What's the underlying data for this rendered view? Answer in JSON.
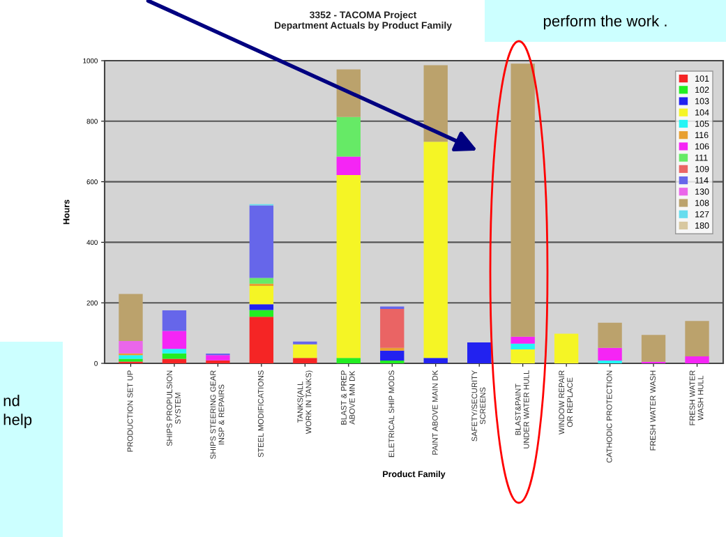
{
  "chart_data": {
    "type": "bar",
    "stacked": true,
    "title": "3352 - TACOMA Project\nDepartment Actuals by Product Family",
    "xlabel": "Product Family",
    "ylabel": "Hours",
    "categories": [
      "PRODUCTION SET UP",
      "SHIPS PROPULSION\nSYSTEM",
      "SHIPS STEERING GEAR\nINSP & REPAIRS",
      "STEEL MODIFICATIONS",
      "TANKS(ALL\nWORK IN TANKS)",
      "BLAST & PREP\nABOVE MN DK",
      "ELETRICAL SHIP MODS",
      "PAINT ABOVE MAIN DK",
      "SAFETY/SECURITY\nSCREENS",
      "BLAST&PAINT\nUNDER WATER HULL",
      "WINDOW REPAIR\nOR REPLACE",
      "CATHODIC PROTECTION",
      "FRESH WATER WASH",
      "FRESH WATER\nWASH HULL"
    ],
    "series": [
      {
        "name": "101",
        "color": "#f52525",
        "values": [
          6,
          15,
          10,
          154,
          18,
          null,
          null,
          null,
          null,
          null,
          null,
          null,
          null,
          null
        ]
      },
      {
        "name": "102",
        "color": "#22ee22",
        "values": [
          9,
          18,
          null,
          22,
          null,
          18,
          9,
          null,
          null,
          null,
          null,
          null,
          null,
          null
        ]
      },
      {
        "name": "103",
        "color": "#2222f0",
        "values": [
          null,
          null,
          null,
          19,
          null,
          null,
          33,
          18,
          69,
          null,
          null,
          null,
          null,
          null
        ]
      },
      {
        "name": "104",
        "color": "#f5f525",
        "values": [
          null,
          null,
          null,
          61,
          45,
          604,
          null,
          714,
          null,
          46,
          98,
          null,
          null,
          null
        ]
      },
      {
        "name": "105",
        "color": "#25f5f5",
        "values": [
          12,
          15,
          null,
          null,
          null,
          null,
          null,
          null,
          null,
          19,
          null,
          9,
          null,
          null
        ]
      },
      {
        "name": "116",
        "color": "#e8a030",
        "values": [
          6,
          null,
          null,
          7,
          null,
          null,
          9,
          null,
          null,
          null,
          null,
          null,
          null,
          null
        ]
      },
      {
        "name": "106",
        "color": "#f525f5",
        "values": [
          null,
          59,
          17,
          null,
          null,
          61,
          null,
          null,
          null,
          23,
          null,
          42,
          5,
          23
        ]
      },
      {
        "name": "111",
        "color": "#66ea66",
        "values": [
          null,
          null,
          null,
          19,
          null,
          131,
          null,
          null,
          null,
          null,
          null,
          null,
          null,
          null
        ]
      },
      {
        "name": "109",
        "color": "#ea6464",
        "values": [
          null,
          null,
          null,
          null,
          null,
          null,
          129,
          null,
          null,
          null,
          null,
          null,
          null,
          null
        ]
      },
      {
        "name": "114",
        "color": "#6666ea",
        "values": [
          null,
          68,
          5,
          240,
          9,
          null,
          8,
          null,
          null,
          null,
          null,
          null,
          null,
          null
        ]
      },
      {
        "name": "130",
        "color": "#ea66ea",
        "values": [
          41,
          null,
          null,
          null,
          null,
          null,
          null,
          null,
          null,
          null,
          null,
          null,
          null,
          null
        ]
      },
      {
        "name": "108",
        "color": "#bba26c",
        "values": [
          155,
          null,
          null,
          null,
          null,
          157,
          null,
          253,
          null,
          902,
          null,
          83,
          89,
          117
        ]
      },
      {
        "name": "127",
        "color": "#66ddee",
        "values": [
          null,
          null,
          null,
          4,
          null,
          null,
          null,
          null,
          null,
          null,
          null,
          null,
          null,
          null
        ]
      },
      {
        "name": "180",
        "color": "#d8c8a0",
        "values": [
          null,
          null,
          null,
          null,
          null,
          null,
          null,
          null,
          null,
          null,
          null,
          null,
          null,
          null
        ]
      }
    ],
    "ylim": [
      0,
      1000
    ],
    "yticks": [
      0,
      200,
      400,
      600,
      800,
      1000
    ],
    "grid": "y",
    "legend": "top right",
    "annotations": [
      "perform the work .",
      "nd\nhelp"
    ]
  }
}
